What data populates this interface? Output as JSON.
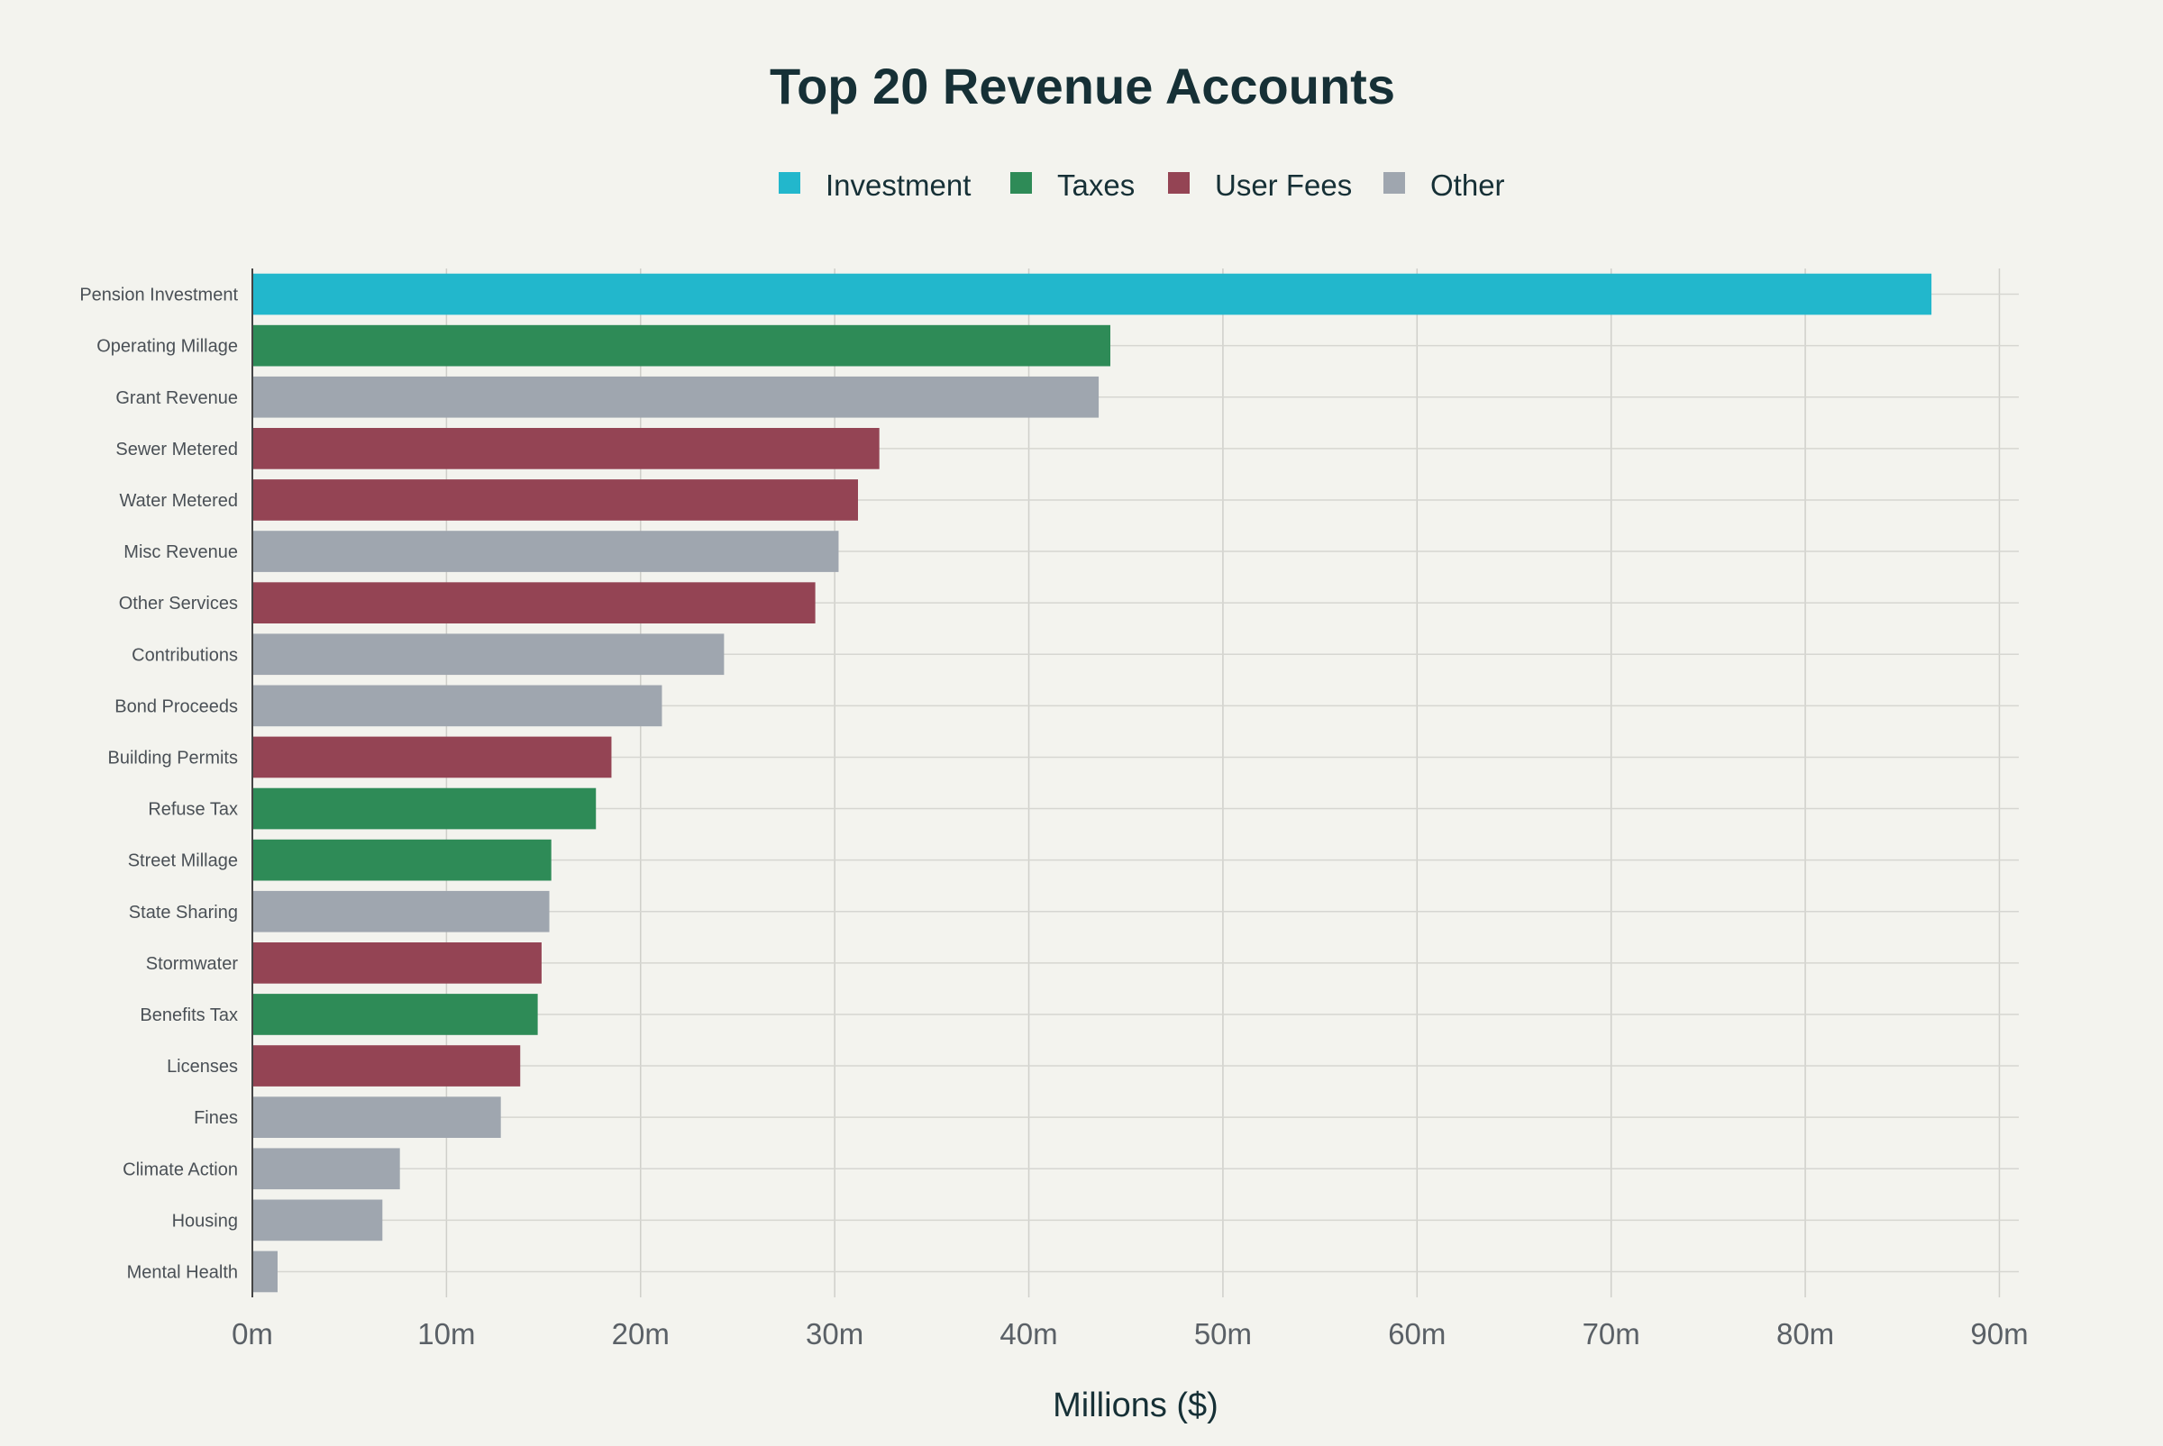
{
  "chart_data": {
    "type": "bar",
    "orientation": "horizontal",
    "title": "Top 20 Revenue Accounts",
    "xlabel": "Millions ($)",
    "ylabel": "",
    "xlim": [
      0,
      91
    ],
    "x_ticks": [
      0,
      10,
      20,
      30,
      40,
      50,
      60,
      70,
      80,
      90
    ],
    "x_tick_labels": [
      "0m",
      "10m",
      "20m",
      "30m",
      "40m",
      "50m",
      "60m",
      "70m",
      "80m",
      "90m"
    ],
    "grid": true,
    "legend_position": "top-center",
    "legend": [
      {
        "name": "Investment",
        "color": "#22b7cc"
      },
      {
        "name": "Taxes",
        "color": "#2e8b57"
      },
      {
        "name": "User Fees",
        "color": "#944454"
      },
      {
        "name": "Other",
        "color": "#9fa6af"
      }
    ],
    "categories": [
      "Pension Investment",
      "Operating Millage",
      "Grant Revenue",
      "Sewer Metered",
      "Water Metered",
      "Misc Revenue",
      "Other Services",
      "Contributions",
      "Bond Proceeds",
      "Building Permits",
      "Refuse Tax",
      "Street Millage",
      "State Sharing",
      "Stormwater",
      "Benefits Tax",
      "Licenses",
      "Fines",
      "Climate Action",
      "Housing",
      "Mental Health"
    ],
    "values": [
      86.5,
      44.2,
      43.6,
      32.3,
      31.2,
      30.2,
      29.0,
      24.3,
      21.1,
      18.5,
      17.7,
      15.4,
      15.3,
      14.9,
      14.7,
      13.8,
      12.8,
      7.6,
      6.7,
      1.3
    ],
    "groups": [
      "Investment",
      "Taxes",
      "Other",
      "User Fees",
      "User Fees",
      "Other",
      "User Fees",
      "Other",
      "Other",
      "User Fees",
      "Taxes",
      "Taxes",
      "Other",
      "User Fees",
      "Taxes",
      "User Fees",
      "Other",
      "Other",
      "Other",
      "Other"
    ]
  }
}
